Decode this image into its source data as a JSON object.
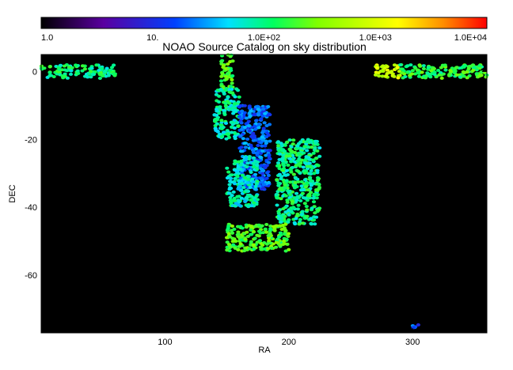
{
  "chart_data": {
    "type": "heatmap",
    "title": "NOAO Source Catalog on sky distribution",
    "xlabel": "RA",
    "ylabel": "DEC",
    "xlim": [
      0,
      360
    ],
    "ylim": [
      -77,
      5
    ],
    "x_ticks": [
      100,
      200,
      300
    ],
    "y_ticks": [
      0,
      -20,
      -40,
      -60
    ],
    "background_color": "#000000",
    "colorbar": {
      "scale": "log",
      "range": [
        1,
        10000
      ],
      "ticks": [
        {
          "value": 1,
          "label": "1.0"
        },
        {
          "value": 10,
          "label": "10."
        },
        {
          "value": 100,
          "label": "1.0E+02"
        },
        {
          "value": 1000,
          "label": "1.0E+03"
        },
        {
          "value": 10000,
          "label": "1.0E+04"
        }
      ],
      "colors": [
        "#000000",
        "#5a00a0",
        "#0040ff",
        "#00e0ff",
        "#00ff60",
        "#80ff00",
        "#ffff00",
        "#ff9000",
        "#ff0000"
      ]
    },
    "regions": [
      {
        "ra": [
          0,
          60
        ],
        "dec": [
          -2,
          2
        ],
        "density": 100
      },
      {
        "ra": [
          270,
          290
        ],
        "dec": [
          -2,
          2
        ],
        "density": 800
      },
      {
        "ra": [
          290,
          360
        ],
        "dec": [
          -2,
          2
        ],
        "density": 150
      },
      {
        "ra": [
          145,
          155
        ],
        "dec": [
          -5,
          5
        ],
        "density": 200
      },
      {
        "ra": [
          140,
          160
        ],
        "dec": [
          -20,
          -5
        ],
        "density": 80
      },
      {
        "ra": [
          160,
          185
        ],
        "dec": [
          -35,
          -10
        ],
        "density": 20
      },
      {
        "ra": [
          150,
          175
        ],
        "dec": [
          -40,
          -25
        ],
        "density": 70
      },
      {
        "ra": [
          190,
          225
        ],
        "dec": [
          -45,
          -20
        ],
        "density": 100
      },
      {
        "ra": [
          150,
          200
        ],
        "dec": [
          -53,
          -45
        ],
        "density": 200
      },
      {
        "ra": [
          300,
          305
        ],
        "dec": [
          -76,
          -74
        ],
        "density": 15
      }
    ]
  }
}
